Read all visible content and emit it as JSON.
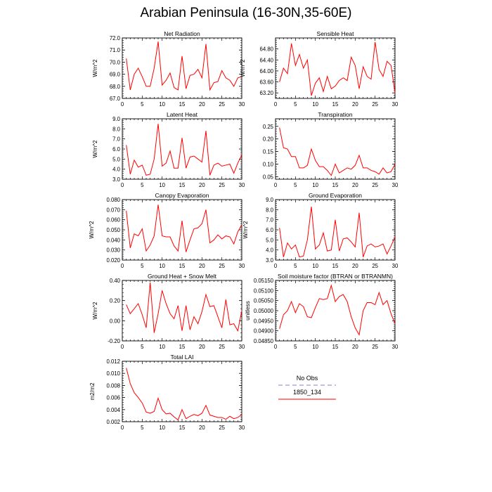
{
  "title": "Arabian Peninsula (16-30N,35-60E)",
  "legend": {
    "entries": [
      {
        "label": "No Obs",
        "color": "#9999dd",
        "style": "dashed"
      },
      {
        "label": "1850_134",
        "color": "#ff0000",
        "style": "solid"
      }
    ]
  },
  "chart_data": [
    {
      "type": "line",
      "title": "Net Radiation",
      "ylabel": "W/m^2",
      "xlim": [
        0,
        30
      ],
      "xticks": [
        "0",
        "5",
        "10",
        "15",
        "20",
        "25",
        "30"
      ],
      "ylim": [
        67.0,
        72.0
      ],
      "yticks": [
        "67.0",
        "68.0",
        "69.0",
        "70.0",
        "71.0",
        "72.0"
      ],
      "series": [
        {
          "color": "#ff0000",
          "x": [
            1,
            2,
            3,
            4,
            5,
            6,
            7,
            8,
            9,
            10,
            11,
            12,
            13,
            14,
            15,
            16,
            17,
            18,
            19,
            20,
            21,
            22,
            23,
            24,
            25,
            26,
            27,
            28,
            29,
            30
          ],
          "values": [
            70.3,
            67.7,
            69.0,
            69.5,
            68.8,
            68.0,
            68.0,
            69.5,
            71.7,
            68.1,
            68.5,
            69.1,
            67.9,
            67.7,
            70.5,
            67.8,
            68.9,
            69.0,
            69.4,
            68.7,
            71.5,
            67.7,
            68.3,
            68.4,
            69.3,
            68.7,
            68.5,
            68.0,
            68.7,
            68.8
          ]
        }
      ]
    },
    {
      "type": "line",
      "title": "Sensible Heat",
      "ylabel": "W/m^2",
      "xlim": [
        0,
        30
      ],
      "xticks": [
        "0",
        "5",
        "10",
        "15",
        "20",
        "25",
        "30"
      ],
      "ylim": [
        63.0,
        65.2
      ],
      "yticks": [
        "63.20",
        "63.60",
        "64.00",
        "64.40",
        "64.80"
      ],
      "series": [
        {
          "color": "#ff0000",
          "x": [
            1,
            2,
            3,
            4,
            5,
            6,
            7,
            8,
            9,
            10,
            11,
            12,
            13,
            14,
            15,
            16,
            17,
            18,
            19,
            20,
            21,
            22,
            23,
            24,
            25,
            26,
            27,
            28,
            29,
            30
          ],
          "values": [
            63.6,
            64.1,
            63.9,
            65.0,
            64.2,
            64.6,
            64.1,
            64.4,
            63.1,
            63.55,
            63.75,
            63.25,
            63.8,
            63.35,
            63.45,
            63.65,
            63.75,
            63.65,
            64.5,
            64.2,
            63.35,
            64.15,
            63.8,
            63.7,
            65.05,
            64.05,
            63.8,
            64.35,
            64.2,
            63.2
          ]
        }
      ]
    },
    {
      "type": "line",
      "title": "Latent Heat",
      "ylabel": "W/m^2",
      "xlim": [
        0,
        30
      ],
      "xticks": [
        "0",
        "5",
        "10",
        "15",
        "20",
        "25",
        "30"
      ],
      "ylim": [
        3.0,
        9.0
      ],
      "yticks": [
        "3.0",
        "4.0",
        "5.0",
        "6.0",
        "7.0",
        "8.0",
        "9.0"
      ],
      "series": [
        {
          "color": "#ff0000",
          "x": [
            1,
            2,
            3,
            4,
            5,
            6,
            7,
            8,
            9,
            10,
            11,
            12,
            13,
            14,
            15,
            16,
            17,
            18,
            19,
            20,
            21,
            22,
            23,
            24,
            25,
            26,
            27,
            28,
            29,
            30
          ],
          "values": [
            6.4,
            3.5,
            4.9,
            4.2,
            4.4,
            3.4,
            3.5,
            5.0,
            8.5,
            4.3,
            4.6,
            5.8,
            4.1,
            4.1,
            7.1,
            4.1,
            5.2,
            5.3,
            5.0,
            4.7,
            7.8,
            3.4,
            4.4,
            4.6,
            4.3,
            4.4,
            4.5,
            3.6,
            4.6,
            5.4
          ]
        }
      ]
    },
    {
      "type": "line",
      "title": "Transpiration",
      "ylabel": "",
      "xlim": [
        0,
        30
      ],
      "xticks": [
        "0",
        "5",
        "10",
        "15",
        "20",
        "25",
        "30"
      ],
      "ylim": [
        0.04,
        0.28
      ],
      "yticks": [
        "0.05",
        "0.10",
        "0.15",
        "0.20",
        "0.25"
      ],
      "series": [
        {
          "color": "#ff0000",
          "x": [
            1,
            2,
            3,
            4,
            5,
            6,
            7,
            8,
            9,
            10,
            11,
            12,
            13,
            14,
            15,
            16,
            17,
            18,
            19,
            20,
            21,
            22,
            23,
            24,
            25,
            26,
            27,
            28,
            29,
            30
          ],
          "values": [
            0.245,
            0.165,
            0.16,
            0.13,
            0.13,
            0.085,
            0.085,
            0.095,
            0.16,
            0.115,
            0.09,
            0.09,
            0.075,
            0.055,
            0.1,
            0.065,
            0.075,
            0.085,
            0.08,
            0.095,
            0.135,
            0.085,
            0.085,
            0.075,
            0.07,
            0.06,
            0.085,
            0.065,
            0.07,
            0.1
          ]
        }
      ]
    },
    {
      "type": "line",
      "title": "Canopy Evaporation",
      "ylabel": "W/m^2",
      "xlim": [
        0,
        30
      ],
      "xticks": [
        "0",
        "5",
        "10",
        "15",
        "20",
        "25",
        "30"
      ],
      "ylim": [
        0.02,
        0.08
      ],
      "yticks": [
        "0.020",
        "0.030",
        "0.040",
        "0.050",
        "0.060",
        "0.070",
        "0.080"
      ],
      "series": [
        {
          "color": "#ff0000",
          "x": [
            1,
            2,
            3,
            4,
            5,
            6,
            7,
            8,
            9,
            10,
            11,
            12,
            13,
            14,
            15,
            16,
            17,
            18,
            19,
            20,
            21,
            22,
            23,
            24,
            25,
            26,
            27,
            28,
            29,
            30
          ],
          "values": [
            0.069,
            0.032,
            0.046,
            0.044,
            0.051,
            0.029,
            0.035,
            0.044,
            0.075,
            0.044,
            0.043,
            0.043,
            0.034,
            0.029,
            0.059,
            0.028,
            0.04,
            0.051,
            0.052,
            0.056,
            0.07,
            0.037,
            0.04,
            0.045,
            0.041,
            0.044,
            0.043,
            0.036,
            0.048,
            0.055
          ]
        }
      ]
    },
    {
      "type": "line",
      "title": "Ground Evaporation",
      "ylabel": "W/m^2",
      "xlim": [
        0,
        30
      ],
      "xticks": [
        "0",
        "5",
        "10",
        "15",
        "20",
        "25",
        "30"
      ],
      "ylim": [
        3.0,
        9.0
      ],
      "yticks": [
        "3.0",
        "4.0",
        "5.0",
        "6.0",
        "7.0",
        "8.0",
        "9.0"
      ],
      "series": [
        {
          "color": "#ff0000",
          "x": [
            1,
            2,
            3,
            4,
            5,
            6,
            7,
            8,
            9,
            10,
            11,
            12,
            13,
            14,
            15,
            16,
            17,
            18,
            19,
            20,
            21,
            22,
            23,
            24,
            25,
            26,
            27,
            28,
            29,
            30
          ],
          "values": [
            6.2,
            3.3,
            4.7,
            4.1,
            4.5,
            3.3,
            3.4,
            5.0,
            8.3,
            4.1,
            4.5,
            5.7,
            3.9,
            4.0,
            7.0,
            3.9,
            5.1,
            5.2,
            4.8,
            4.3,
            7.7,
            3.3,
            4.4,
            4.6,
            4.3,
            4.4,
            4.6,
            3.6,
            4.4,
            5.3
          ]
        }
      ]
    },
    {
      "type": "line",
      "title": "Ground Heat + Snow Melt",
      "ylabel": "W/m^2",
      "xlim": [
        0,
        30
      ],
      "xticks": [
        "0",
        "5",
        "10",
        "15",
        "20",
        "25",
        "30"
      ],
      "ylim": [
        -0.2,
        0.4
      ],
      "yticks": [
        "-0.20",
        "0.00",
        "0.20",
        "0.40"
      ],
      "series": [
        {
          "color": "#ff0000",
          "x": [
            1,
            2,
            3,
            4,
            5,
            6,
            7,
            8,
            9,
            10,
            11,
            12,
            13,
            14,
            15,
            16,
            17,
            18,
            19,
            20,
            21,
            22,
            23,
            24,
            25,
            26,
            27,
            28,
            29,
            30
          ],
          "values": [
            0.16,
            0.07,
            0.12,
            0.17,
            0.06,
            -0.07,
            0.38,
            -0.12,
            0.07,
            0.3,
            0.17,
            0.07,
            0.02,
            0.15,
            -0.1,
            0.15,
            -0.09,
            0.04,
            -0.03,
            0.09,
            0.26,
            0.14,
            0.15,
            0.04,
            -0.07,
            0.21,
            -0.04,
            -0.03,
            -0.1,
            0.1
          ]
        }
      ]
    },
    {
      "type": "line",
      "title": "Soil moisture factor (BTRAN or BTRANMN)",
      "ylabel": "unitless",
      "xlim": [
        0,
        30
      ],
      "xticks": [
        "0",
        "5",
        "10",
        "15",
        "20",
        "25",
        "30"
      ],
      "ylim": [
        0.0485,
        0.0515
      ],
      "yticks": [
        "0.04850",
        "0.04900",
        "0.04950",
        "0.05000",
        "0.05050",
        "0.05100",
        "0.05150"
      ],
      "series": [
        {
          "color": "#ff0000",
          "x": [
            1,
            2,
            3,
            4,
            5,
            6,
            7,
            8,
            9,
            10,
            11,
            12,
            13,
            14,
            15,
            16,
            17,
            18,
            19,
            20,
            21,
            22,
            23,
            24,
            25,
            26,
            27,
            28,
            29,
            30
          ],
          "values": [
            0.0491,
            0.0498,
            0.05,
            0.05045,
            0.0499,
            0.05035,
            0.0502,
            0.0497,
            0.04965,
            0.05015,
            0.0506,
            0.05055,
            0.0506,
            0.05125,
            0.05045,
            0.0507,
            0.0508,
            0.05045,
            0.0497,
            0.04915,
            0.0488,
            0.05,
            0.0504,
            0.0504,
            0.0503,
            0.0509,
            0.0503,
            0.0505,
            0.04985,
            0.04935
          ]
        }
      ]
    },
    {
      "type": "line",
      "title": "Total LAI",
      "ylabel": "m2/m2",
      "xlim": [
        0,
        30
      ],
      "xticks": [
        "0",
        "5",
        "10",
        "15",
        "20",
        "25",
        "30"
      ],
      "ylim": [
        0.002,
        0.012
      ],
      "yticks": [
        "0.002",
        "0.004",
        "0.006",
        "0.008",
        "0.010",
        "0.012"
      ],
      "series": [
        {
          "color": "#ff0000",
          "x": [
            1,
            2,
            3,
            4,
            5,
            6,
            7,
            8,
            9,
            10,
            11,
            12,
            13,
            14,
            15,
            16,
            17,
            18,
            19,
            20,
            21,
            22,
            23,
            24,
            25,
            26,
            27,
            28,
            29,
            30
          ],
          "values": [
            0.0109,
            0.0083,
            0.0068,
            0.006,
            0.0051,
            0.0036,
            0.0034,
            0.0037,
            0.0059,
            0.004,
            0.0033,
            0.0034,
            0.0028,
            0.0023,
            0.004,
            0.0025,
            0.0029,
            0.0032,
            0.003,
            0.0034,
            0.0047,
            0.0031,
            0.0029,
            0.0027,
            0.0027,
            0.0024,
            0.0029,
            0.0025,
            0.0027,
            0.0032
          ]
        }
      ]
    }
  ]
}
